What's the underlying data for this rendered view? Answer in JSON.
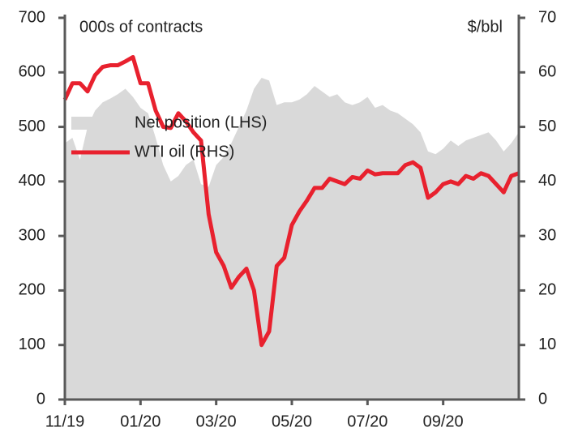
{
  "chart_data": {
    "type": "combo",
    "ylabel": "000s of contracts",
    "y2label": "$/bbl",
    "categories": [
      "11/19",
      null,
      null,
      null,
      null,
      null,
      null,
      null,
      null,
      null,
      "01/20",
      null,
      null,
      null,
      null,
      null,
      null,
      null,
      null,
      null,
      "03/20",
      null,
      null,
      null,
      null,
      null,
      null,
      null,
      null,
      null,
      "05/20",
      null,
      null,
      null,
      null,
      null,
      null,
      null,
      null,
      null,
      "07/20",
      null,
      null,
      null,
      null,
      null,
      null,
      null,
      null,
      null,
      "09/20",
      null,
      null,
      null,
      null,
      null,
      null,
      null,
      null,
      null,
      null
    ],
    "series": [
      {
        "name": "Net position (LHS)",
        "style": "area",
        "color": "#d9d9d9",
        "values": [
          470,
          480,
          440,
          500,
          530,
          545,
          552,
          560,
          570,
          555,
          535,
          525,
          480,
          430,
          400,
          410,
          430,
          440,
          395,
          390,
          430,
          445,
          470,
          500,
          530,
          570,
          590,
          585,
          540,
          545,
          545,
          550,
          560,
          575,
          565,
          555,
          560,
          545,
          540,
          545,
          555,
          535,
          540,
          530,
          525,
          515,
          505,
          490,
          455,
          450,
          460,
          475,
          465,
          475,
          480,
          485,
          490,
          475,
          455,
          470,
          490
        ]
      },
      {
        "name": "WTI oil (RHS)",
        "style": "line",
        "axis": "y2",
        "color": "#e8212e",
        "values": [
          55,
          58,
          58,
          56.5,
          59.5,
          61,
          61.3,
          61.3,
          62,
          62.8,
          58,
          58,
          53,
          50,
          49.8,
          52.5,
          51,
          49,
          47.5,
          34,
          27,
          24.5,
          20.5,
          22.5,
          24,
          20,
          10,
          12.5,
          24.5,
          26,
          32,
          34.5,
          36.5,
          38.8,
          38.8,
          40.5,
          40,
          39.5,
          40.8,
          40.5,
          42,
          41.3,
          41.5,
          41.5,
          41.5,
          43,
          43.5,
          42.5,
          37,
          38,
          39.5,
          40,
          39.5,
          41,
          40.5,
          41.5,
          41,
          39.5,
          38,
          41,
          41.5
        ]
      }
    ],
    "ylim": [
      0,
      700
    ],
    "yticks": [
      0,
      100,
      200,
      300,
      400,
      500,
      600,
      700
    ],
    "y2lim": [
      0,
      70
    ],
    "y2ticks": [
      0,
      10,
      20,
      30,
      40,
      50,
      60,
      70
    ],
    "legend": "upper left",
    "grid": false
  }
}
